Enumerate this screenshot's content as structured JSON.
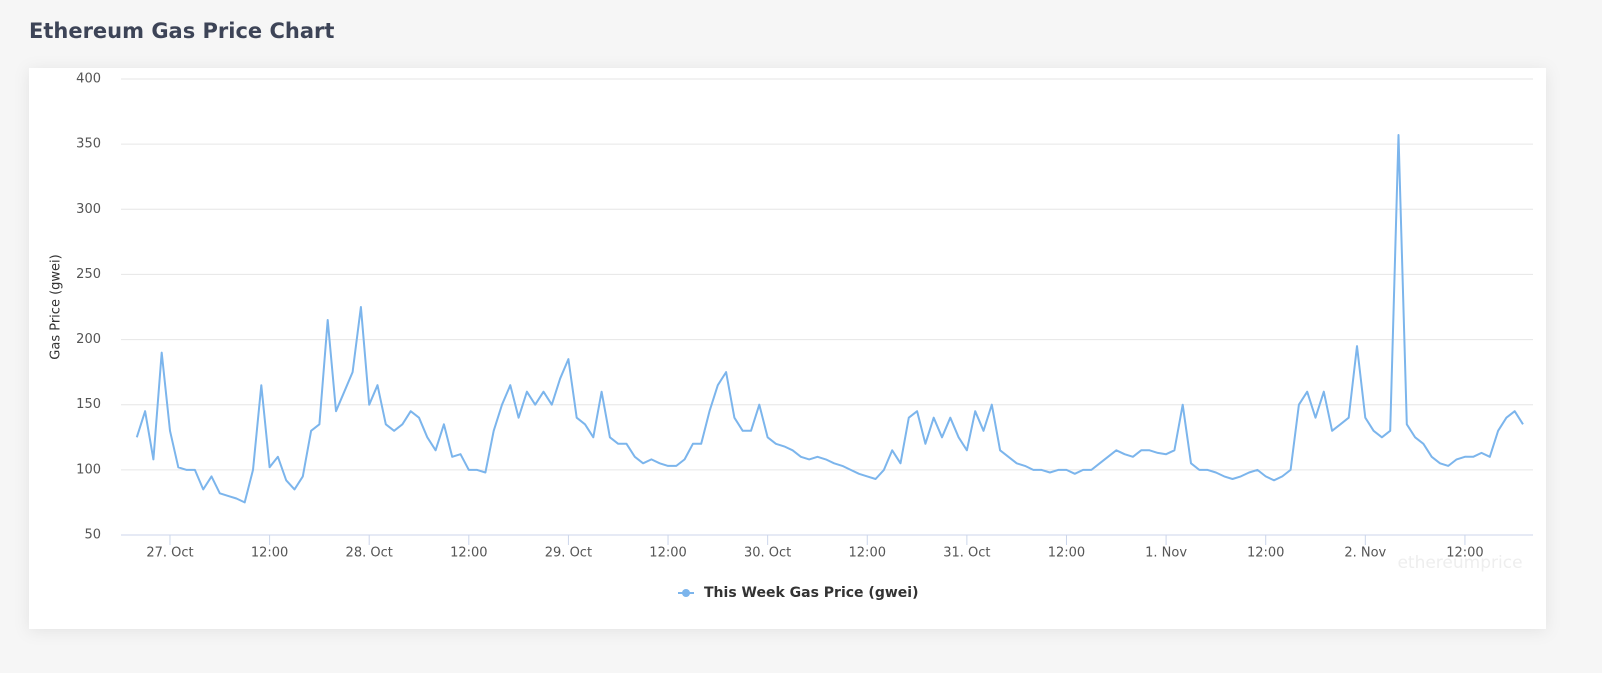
{
  "chart_data": {
    "type": "line",
    "title": "Ethereum Gas Price Chart",
    "y_label": "Gas Price (gwei)",
    "watermark": "ethereumprice",
    "x": [
      20,
      21,
      22,
      23,
      24,
      25,
      26,
      27,
      28,
      29,
      30,
      31,
      32,
      33,
      34,
      35,
      36,
      37,
      38,
      39,
      40,
      41,
      42,
      43,
      44,
      45,
      46,
      47,
      48,
      49,
      50,
      51,
      52,
      53,
      54,
      55,
      56,
      57,
      58,
      59,
      60,
      61,
      62,
      63,
      64,
      65,
      66,
      67,
      68,
      69,
      70,
      71,
      72,
      73,
      74,
      75,
      76,
      77,
      78,
      79,
      80,
      81,
      82,
      83,
      84,
      85,
      86,
      87,
      88,
      89,
      90,
      91,
      92,
      93,
      94,
      95,
      96,
      97,
      98,
      99,
      100,
      101,
      102,
      103,
      104,
      105,
      106,
      107,
      108,
      109,
      110,
      111,
      112,
      113,
      114,
      115,
      116,
      117,
      118,
      119,
      120,
      121,
      122,
      123,
      124,
      125,
      126,
      127,
      128,
      129,
      130,
      131,
      132,
      133,
      134,
      135,
      136,
      137,
      138,
      139,
      140,
      141,
      142,
      143,
      144,
      145,
      146,
      147,
      148,
      149,
      150,
      151,
      152,
      153,
      154,
      155,
      156,
      157,
      158,
      159,
      160,
      161,
      162,
      163,
      164,
      165,
      166,
      167,
      168,
      169,
      170,
      171,
      172,
      173,
      174,
      175,
      176,
      177,
      178,
      179,
      180,
      181,
      182,
      183,
      184,
      185,
      186,
      187
    ],
    "series": [
      {
        "name": "This Week Gas Price (gwei)",
        "color": "#7cb5ec",
        "values": [
          125,
          145,
          108,
          190,
          130,
          102,
          100,
          100,
          85,
          95,
          82,
          80,
          78,
          75,
          100,
          165,
          102,
          110,
          92,
          85,
          95,
          130,
          135,
          215,
          145,
          160,
          175,
          225,
          150,
          165,
          135,
          130,
          135,
          145,
          140,
          125,
          115,
          135,
          110,
          112,
          100,
          100,
          98,
          130,
          150,
          165,
          140,
          160,
          150,
          160,
          150,
          170,
          185,
          140,
          135,
          125,
          160,
          125,
          120,
          120,
          110,
          105,
          108,
          105,
          103,
          103,
          108,
          120,
          120,
          145,
          165,
          175,
          140,
          130,
          130,
          150,
          125,
          120,
          118,
          115,
          110,
          108,
          110,
          108,
          105,
          103,
          100,
          97,
          95,
          93,
          100,
          115,
          105,
          140,
          145,
          120,
          140,
          125,
          140,
          125,
          115,
          145,
          130,
          150,
          115,
          110,
          105,
          103,
          100,
          100,
          98,
          100,
          100,
          97,
          100,
          100,
          105,
          110,
          115,
          112,
          110,
          115,
          115,
          113,
          112,
          115,
          150,
          105,
          100,
          100,
          98,
          95,
          93,
          95,
          98,
          100,
          95,
          92,
          95,
          100,
          150,
          160,
          140,
          160,
          130,
          135,
          140,
          195,
          140,
          130,
          125,
          130,
          357,
          135,
          125,
          120,
          110,
          105,
          103,
          108,
          110,
          110,
          113,
          110,
          130,
          140,
          145,
          135
        ]
      }
    ],
    "xlim": [
      18.1,
      188.2
    ],
    "xticks": [
      {
        "value": 24,
        "label": "27. Oct"
      },
      {
        "value": 36,
        "label": "12:00"
      },
      {
        "value": 48,
        "label": "28. Oct"
      },
      {
        "value": 60,
        "label": "12:00"
      },
      {
        "value": 72,
        "label": "29. Oct"
      },
      {
        "value": 84,
        "label": "12:00"
      },
      {
        "value": 96,
        "label": "30. Oct"
      },
      {
        "value": 108,
        "label": "12:00"
      },
      {
        "value": 120,
        "label": "31. Oct"
      },
      {
        "value": 132,
        "label": "12:00"
      },
      {
        "value": 144,
        "label": "1. Nov"
      },
      {
        "value": 156,
        "label": "12:00"
      },
      {
        "value": 168,
        "label": "2. Nov"
      },
      {
        "value": 180,
        "label": "12:00"
      }
    ],
    "ylim": [
      50,
      400
    ],
    "yticks": [
      50,
      100,
      150,
      200,
      250,
      300,
      350,
      400
    ],
    "grid": true
  }
}
